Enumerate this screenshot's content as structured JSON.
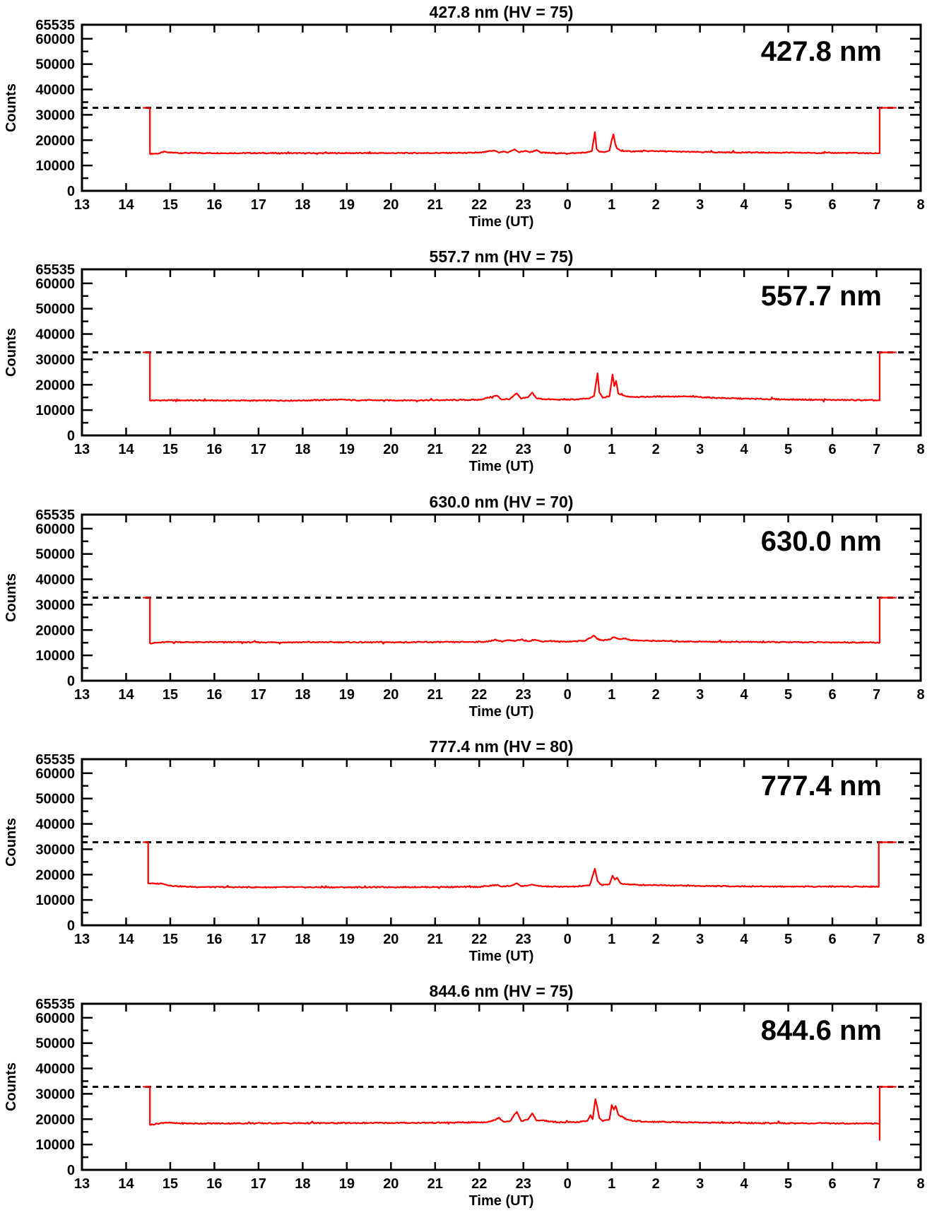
{
  "figure": {
    "background": "#ffffff",
    "axis_color": "#000000",
    "dashed_line_color": "#000000"
  },
  "axes": {
    "xlabel": "Time (UT)",
    "ylabel": "Counts",
    "x_tick_labels": [
      "13",
      "14",
      "15",
      "16",
      "17",
      "18",
      "19",
      "20",
      "21",
      "22",
      "23",
      "0",
      "1",
      "2",
      "3",
      "4",
      "5",
      "6",
      "7",
      "8"
    ],
    "x_range_hours": [
      13,
      32
    ],
    "y_major_tick_labels": [
      "0",
      "10000",
      "20000",
      "30000",
      "40000",
      "50000",
      "60000"
    ],
    "y_axis_max_label": "65535",
    "y_max": 65535,
    "y_minor_step": 5000,
    "dashed_line_value": 32767.5,
    "grid": false,
    "legend": "none"
  },
  "chart_data": [
    {
      "type": "line",
      "title": "427.8 nm (HV = 75)",
      "wavelength_label": "427.8 nm",
      "line_color": "#ff0000",
      "noise_amplitude": 420,
      "series": [
        [
          14.38,
          32767
        ],
        [
          14.54,
          32767
        ],
        [
          14.54,
          14600
        ],
        [
          14.75,
          14800
        ],
        [
          14.88,
          15500
        ],
        [
          14.96,
          15100
        ],
        [
          15.3,
          14950
        ],
        [
          16,
          14900
        ],
        [
          17,
          14900
        ],
        [
          18,
          14850
        ],
        [
          19,
          14900
        ],
        [
          20,
          14900
        ],
        [
          21,
          14950
        ],
        [
          22,
          15000
        ],
        [
          22.35,
          15900
        ],
        [
          22.45,
          15100
        ],
        [
          22.55,
          15600
        ],
        [
          22.65,
          15100
        ],
        [
          22.8,
          16400
        ],
        [
          22.9,
          15200
        ],
        [
          23.05,
          15800
        ],
        [
          23.15,
          15200
        ],
        [
          23.3,
          16100
        ],
        [
          23.4,
          15100
        ],
        [
          23.6,
          14950
        ],
        [
          23.9,
          14800
        ],
        [
          24.2,
          14900
        ],
        [
          24.45,
          15200
        ],
        [
          24.55,
          15600
        ],
        [
          24.62,
          23200
        ],
        [
          24.66,
          16500
        ],
        [
          24.72,
          15400
        ],
        [
          24.85,
          15300
        ],
        [
          24.95,
          15900
        ],
        [
          25.0,
          20000
        ],
        [
          25.04,
          22300
        ],
        [
          25.08,
          18500
        ],
        [
          25.12,
          16800
        ],
        [
          25.2,
          15900
        ],
        [
          25.35,
          15600
        ],
        [
          25.6,
          15600
        ],
        [
          26,
          15700
        ],
        [
          26.4,
          15500
        ],
        [
          27,
          15300
        ],
        [
          27.6,
          15200
        ],
        [
          28.5,
          15100
        ],
        [
          29.5,
          15000
        ],
        [
          30.5,
          14950
        ],
        [
          31.02,
          14800
        ],
        [
          31.07,
          14800
        ],
        [
          31.07,
          32767
        ],
        [
          31.45,
          32767
        ]
      ]
    },
    {
      "type": "line",
      "title": "557.7 nm (HV = 75)",
      "wavelength_label": "557.7 nm",
      "line_color": "#ff0000",
      "noise_amplitude": 450,
      "series": [
        [
          14.38,
          32767
        ],
        [
          14.54,
          32767
        ],
        [
          14.54,
          13800
        ],
        [
          15,
          13850
        ],
        [
          16,
          13800
        ],
        [
          17,
          13750
        ],
        [
          18,
          13800
        ],
        [
          18.8,
          14100
        ],
        [
          19.2,
          13900
        ],
        [
          20,
          13850
        ],
        [
          21,
          13900
        ],
        [
          22,
          14050
        ],
        [
          22.4,
          15700
        ],
        [
          22.5,
          14200
        ],
        [
          22.7,
          14400
        ],
        [
          22.85,
          16600
        ],
        [
          22.95,
          14500
        ],
        [
          23.1,
          15000
        ],
        [
          23.2,
          16900
        ],
        [
          23.3,
          14600
        ],
        [
          23.5,
          14300
        ],
        [
          23.8,
          14100
        ],
        [
          24.2,
          14200
        ],
        [
          24.5,
          14600
        ],
        [
          24.6,
          15500
        ],
        [
          24.68,
          24500
        ],
        [
          24.72,
          17000
        ],
        [
          24.8,
          14800
        ],
        [
          24.95,
          15500
        ],
        [
          25.02,
          24000
        ],
        [
          25.06,
          19500
        ],
        [
          25.1,
          21500
        ],
        [
          25.15,
          16500
        ],
        [
          25.25,
          15800
        ],
        [
          25.4,
          15300
        ],
        [
          25.7,
          15200
        ],
        [
          26.2,
          15400
        ],
        [
          26.8,
          15300
        ],
        [
          27.4,
          14800
        ],
        [
          28,
          14500
        ],
        [
          29,
          14200
        ],
        [
          30,
          14000
        ],
        [
          30.8,
          13900
        ],
        [
          31.07,
          13800
        ],
        [
          31.07,
          32767
        ],
        [
          31.45,
          32767
        ]
      ]
    },
    {
      "type": "line",
      "title": "630.0 nm (HV = 70)",
      "wavelength_label": "630.0 nm",
      "line_color": "#ff0000",
      "noise_amplitude": 430,
      "series": [
        [
          14.38,
          32767
        ],
        [
          14.54,
          32767
        ],
        [
          14.54,
          14800
        ],
        [
          14.8,
          15100
        ],
        [
          15.0,
          15300
        ],
        [
          15.5,
          15200
        ],
        [
          16.5,
          15200
        ],
        [
          17.5,
          15150
        ],
        [
          18.5,
          15200
        ],
        [
          19.5,
          15150
        ],
        [
          20.5,
          15200
        ],
        [
          21.5,
          15250
        ],
        [
          22.2,
          15400
        ],
        [
          22.35,
          16200
        ],
        [
          22.5,
          15500
        ],
        [
          22.65,
          16000
        ],
        [
          22.8,
          15600
        ],
        [
          22.95,
          16300
        ],
        [
          23.1,
          15600
        ],
        [
          23.25,
          16200
        ],
        [
          23.4,
          15500
        ],
        [
          23.6,
          15700
        ],
        [
          23.8,
          15400
        ],
        [
          24.1,
          15500
        ],
        [
          24.4,
          15800
        ],
        [
          24.6,
          17800
        ],
        [
          24.68,
          16400
        ],
        [
          24.8,
          15900
        ],
        [
          24.95,
          16300
        ],
        [
          25.05,
          17200
        ],
        [
          25.15,
          16500
        ],
        [
          25.3,
          16600
        ],
        [
          25.45,
          16000
        ],
        [
          25.7,
          15800
        ],
        [
          26.1,
          15700
        ],
        [
          26.6,
          15500
        ],
        [
          27.2,
          15400
        ],
        [
          28,
          15300
        ],
        [
          29,
          15200
        ],
        [
          30,
          15150
        ],
        [
          30.8,
          15100
        ],
        [
          31.07,
          15000
        ],
        [
          31.07,
          32767
        ],
        [
          31.45,
          32767
        ]
      ]
    },
    {
      "type": "line",
      "title": "777.4 nm (HV = 80)",
      "wavelength_label": "777.4 nm",
      "line_color": "#ff0000",
      "noise_amplitude": 420,
      "series": [
        [
          14.38,
          32767
        ],
        [
          14.5,
          32767
        ],
        [
          14.5,
          16600
        ],
        [
          14.65,
          16400
        ],
        [
          14.8,
          16500
        ],
        [
          14.9,
          16000
        ],
        [
          15.1,
          15500
        ],
        [
          15.4,
          15200
        ],
        [
          15.8,
          15100
        ],
        [
          17,
          15000
        ],
        [
          18,
          15000
        ],
        [
          19,
          15000
        ],
        [
          20,
          15050
        ],
        [
          21,
          15100
        ],
        [
          22,
          15150
        ],
        [
          22.4,
          15900
        ],
        [
          22.5,
          15300
        ],
        [
          22.7,
          15500
        ],
        [
          22.85,
          16600
        ],
        [
          22.95,
          15400
        ],
        [
          23.1,
          15700
        ],
        [
          23.2,
          16100
        ],
        [
          23.35,
          15400
        ],
        [
          23.6,
          15300
        ],
        [
          23.9,
          15200
        ],
        [
          24.2,
          15300
        ],
        [
          24.5,
          15700
        ],
        [
          24.62,
          22300
        ],
        [
          24.68,
          17500
        ],
        [
          24.78,
          15800
        ],
        [
          24.95,
          16200
        ],
        [
          25.02,
          19600
        ],
        [
          25.07,
          18000
        ],
        [
          25.12,
          18800
        ],
        [
          25.2,
          16500
        ],
        [
          25.35,
          16200
        ],
        [
          25.6,
          15900
        ],
        [
          26,
          15900
        ],
        [
          26.5,
          15700
        ],
        [
          27,
          15500
        ],
        [
          27.8,
          15400
        ],
        [
          28.8,
          15300
        ],
        [
          29.8,
          15300
        ],
        [
          30.6,
          15300
        ],
        [
          31.05,
          15200
        ],
        [
          31.05,
          32767
        ],
        [
          31.45,
          32767
        ]
      ]
    },
    {
      "type": "line",
      "title": "844.6 nm (HV = 75)",
      "wavelength_label": "844.6 nm",
      "line_color": "#ff0000",
      "noise_amplitude": 480,
      "series": [
        [
          14.38,
          32767
        ],
        [
          14.54,
          32767
        ],
        [
          14.54,
          17800
        ],
        [
          14.7,
          18200
        ],
        [
          14.9,
          18700
        ],
        [
          15.1,
          18400
        ],
        [
          15.5,
          18300
        ],
        [
          16.5,
          18350
        ],
        [
          17.5,
          18400
        ],
        [
          18.5,
          18450
        ],
        [
          19.5,
          18500
        ],
        [
          20.5,
          18550
        ],
        [
          21.5,
          18650
        ],
        [
          22.1,
          18800
        ],
        [
          22.3,
          19300
        ],
        [
          22.45,
          20600
        ],
        [
          22.55,
          19000
        ],
        [
          22.7,
          19300
        ],
        [
          22.85,
          22900
        ],
        [
          22.95,
          19300
        ],
        [
          23.1,
          19800
        ],
        [
          23.2,
          22300
        ],
        [
          23.3,
          19400
        ],
        [
          23.45,
          19600
        ],
        [
          23.6,
          19000
        ],
        [
          23.9,
          18700
        ],
        [
          24.2,
          18800
        ],
        [
          24.45,
          19300
        ],
        [
          24.52,
          21600
        ],
        [
          24.57,
          20000
        ],
        [
          24.63,
          27900
        ],
        [
          24.67,
          25000
        ],
        [
          24.72,
          20500
        ],
        [
          24.8,
          19200
        ],
        [
          24.95,
          20000
        ],
        [
          25.0,
          25600
        ],
        [
          25.05,
          23800
        ],
        [
          25.09,
          25200
        ],
        [
          25.15,
          21800
        ],
        [
          25.25,
          20800
        ],
        [
          25.35,
          19800
        ],
        [
          25.5,
          19300
        ],
        [
          25.8,
          19000
        ],
        [
          26.3,
          18900
        ],
        [
          27,
          18700
        ],
        [
          28,
          18500
        ],
        [
          29,
          18400
        ],
        [
          30,
          18350
        ],
        [
          30.8,
          18300
        ],
        [
          31.07,
          18300
        ],
        [
          31.07,
          11800
        ],
        [
          31.07,
          32767
        ],
        [
          31.45,
          32767
        ]
      ]
    }
  ]
}
